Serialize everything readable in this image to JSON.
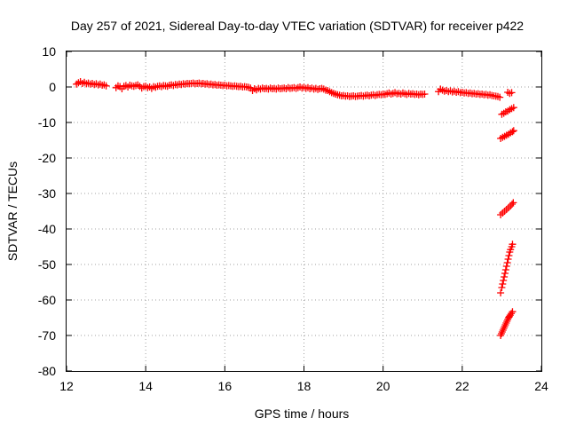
{
  "chart_data": {
    "type": "scatter",
    "title": "Day 257 of 2021, Sidereal Day-to-day VTEC variation (SDTVAR) for receiver p422",
    "xlabel": "GPS time / hours",
    "ylabel": "SDTVAR / TECUs",
    "xlim": [
      12,
      24
    ],
    "ylim": [
      -80,
      10
    ],
    "xticks": [
      "12",
      "14",
      "16",
      "18",
      "20",
      "22",
      "24"
    ],
    "yticks": [
      "10",
      "0",
      "-10",
      "-20",
      "-30",
      "-40",
      "-50",
      "-60",
      "-70",
      "-80"
    ],
    "grid": true,
    "marker": "plus",
    "series": [
      {
        "color": "#ff0000",
        "points": [
          [
            12.25,
            0.8
          ],
          [
            12.3,
            1.2
          ],
          [
            12.35,
            1.5
          ],
          [
            12.4,
            1.0
          ],
          [
            12.45,
            1.3
          ],
          [
            12.5,
            0.9
          ],
          [
            12.55,
            1.1
          ],
          [
            12.6,
            0.8
          ],
          [
            12.65,
            1.0
          ],
          [
            12.7,
            0.7
          ],
          [
            12.75,
            0.9
          ],
          [
            12.8,
            0.6
          ],
          [
            12.85,
            0.8
          ],
          [
            12.9,
            0.5
          ],
          [
            12.95,
            0.6
          ],
          [
            13.0,
            0.3
          ],
          [
            13.25,
            -0.2
          ],
          [
            13.3,
            0.3
          ],
          [
            13.35,
            0.1
          ],
          [
            13.4,
            -0.5
          ],
          [
            13.45,
            0.2
          ],
          [
            13.5,
            0.4
          ],
          [
            13.55,
            0.0
          ],
          [
            13.6,
            0.5
          ],
          [
            13.65,
            0.3
          ],
          [
            13.7,
            0.2
          ],
          [
            13.75,
            0.4
          ],
          [
            13.8,
            0.6
          ],
          [
            13.85,
            0.2
          ],
          [
            13.9,
            -0.3
          ],
          [
            13.95,
            0.1
          ],
          [
            14.0,
            0.2
          ],
          [
            14.05,
            -0.2
          ],
          [
            14.1,
            0.0
          ],
          [
            14.15,
            -0.4
          ],
          [
            14.2,
            0.1
          ],
          [
            14.25,
            -0.1
          ],
          [
            14.3,
            0.2
          ],
          [
            14.35,
            0.3
          ],
          [
            14.4,
            0.1
          ],
          [
            14.45,
            0.4
          ],
          [
            14.5,
            0.3
          ],
          [
            14.55,
            0.2
          ],
          [
            14.6,
            0.5
          ],
          [
            14.65,
            0.6
          ],
          [
            14.7,
            0.4
          ],
          [
            14.75,
            0.7
          ],
          [
            14.8,
            0.6
          ],
          [
            14.85,
            0.8
          ],
          [
            14.9,
            0.7
          ],
          [
            14.95,
            0.9
          ],
          [
            15.0,
            0.8
          ],
          [
            15.05,
            1.0
          ],
          [
            15.1,
            0.9
          ],
          [
            15.15,
            1.0
          ],
          [
            15.2,
            1.1
          ],
          [
            15.25,
            0.9
          ],
          [
            15.3,
            1.0
          ],
          [
            15.35,
            1.1
          ],
          [
            15.4,
            0.9
          ],
          [
            15.45,
            1.0
          ],
          [
            15.5,
            0.8
          ],
          [
            15.55,
            0.9
          ],
          [
            15.6,
            0.7
          ],
          [
            15.65,
            0.8
          ],
          [
            15.7,
            0.6
          ],
          [
            15.75,
            0.7
          ],
          [
            15.8,
            0.5
          ],
          [
            15.85,
            0.6
          ],
          [
            15.9,
            0.5
          ],
          [
            15.95,
            0.4
          ],
          [
            16.0,
            0.5
          ],
          [
            16.05,
            0.3
          ],
          [
            16.1,
            0.4
          ],
          [
            16.15,
            0.3
          ],
          [
            16.2,
            0.2
          ],
          [
            16.25,
            0.3
          ],
          [
            16.3,
            0.2
          ],
          [
            16.35,
            0.1
          ],
          [
            16.4,
            0.2
          ],
          [
            16.45,
            0.0
          ],
          [
            16.5,
            0.1
          ],
          [
            16.55,
            0.0
          ],
          [
            16.6,
            -0.1
          ],
          [
            16.65,
            -0.3
          ],
          [
            16.7,
            -1.0
          ],
          [
            16.75,
            -0.5
          ],
          [
            16.8,
            -0.8
          ],
          [
            16.85,
            -0.4
          ],
          [
            16.9,
            -0.6
          ],
          [
            16.95,
            -0.3
          ],
          [
            17.0,
            -0.5
          ],
          [
            17.05,
            -0.4
          ],
          [
            17.1,
            -0.6
          ],
          [
            17.15,
            -0.3
          ],
          [
            17.2,
            -0.5
          ],
          [
            17.25,
            -0.4
          ],
          [
            17.3,
            -0.6
          ],
          [
            17.35,
            -0.3
          ],
          [
            17.4,
            -0.5
          ],
          [
            17.45,
            -0.4
          ],
          [
            17.5,
            -0.3
          ],
          [
            17.55,
            -0.5
          ],
          [
            17.6,
            -0.2
          ],
          [
            17.65,
            -0.4
          ],
          [
            17.7,
            -0.3
          ],
          [
            17.75,
            -0.2
          ],
          [
            17.8,
            -0.4
          ],
          [
            17.85,
            -0.2
          ],
          [
            17.9,
            0.0
          ],
          [
            17.95,
            -0.3
          ],
          [
            18.0,
            -0.1
          ],
          [
            18.05,
            -0.4
          ],
          [
            18.1,
            -0.2
          ],
          [
            18.15,
            -0.5
          ],
          [
            18.2,
            -0.3
          ],
          [
            18.25,
            -0.6
          ],
          [
            18.3,
            -0.4
          ],
          [
            18.35,
            -0.7
          ],
          [
            18.4,
            -0.5
          ],
          [
            18.45,
            -0.4
          ],
          [
            18.5,
            -0.6
          ],
          [
            18.55,
            -0.9
          ],
          [
            18.6,
            -1.0
          ],
          [
            18.65,
            -1.3
          ],
          [
            18.7,
            -1.6
          ],
          [
            18.75,
            -1.8
          ],
          [
            18.8,
            -2.0
          ],
          [
            18.85,
            -2.2
          ],
          [
            18.9,
            -2.3
          ],
          [
            18.95,
            -2.5
          ],
          [
            19.0,
            -2.4
          ],
          [
            19.05,
            -2.6
          ],
          [
            19.1,
            -2.5
          ],
          [
            19.15,
            -2.7
          ],
          [
            19.2,
            -2.6
          ],
          [
            19.25,
            -2.5
          ],
          [
            19.3,
            -2.7
          ],
          [
            19.35,
            -2.6
          ],
          [
            19.4,
            -2.5
          ],
          [
            19.45,
            -2.4
          ],
          [
            19.5,
            -2.6
          ],
          [
            19.55,
            -2.4
          ],
          [
            19.6,
            -2.3
          ],
          [
            19.65,
            -2.5
          ],
          [
            19.7,
            -2.3
          ],
          [
            19.75,
            -2.2
          ],
          [
            19.8,
            -2.4
          ],
          [
            19.85,
            -2.2
          ],
          [
            19.9,
            -2.1
          ],
          [
            19.95,
            -2.2
          ],
          [
            20.0,
            -2.0
          ],
          [
            20.05,
            -2.1
          ],
          [
            20.1,
            -1.9
          ],
          [
            20.15,
            -1.7
          ],
          [
            20.2,
            -2.0
          ],
          [
            20.25,
            -1.8
          ],
          [
            20.3,
            -1.6
          ],
          [
            20.35,
            -1.9
          ],
          [
            20.4,
            -1.8
          ],
          [
            20.45,
            -2.0
          ],
          [
            20.5,
            -1.7
          ],
          [
            20.55,
            -1.9
          ],
          [
            20.6,
            -2.1
          ],
          [
            20.65,
            -1.8
          ],
          [
            20.7,
            -2.0
          ],
          [
            20.75,
            -1.9
          ],
          [
            20.8,
            -2.1
          ],
          [
            20.85,
            -2.0
          ],
          [
            20.9,
            -2.2
          ],
          [
            20.95,
            -2.0
          ],
          [
            21.0,
            -2.1
          ],
          [
            21.05,
            -2.0
          ],
          [
            21.4,
            -1.3
          ],
          [
            21.45,
            -0.6
          ],
          [
            21.5,
            -0.9
          ],
          [
            21.55,
            -1.2
          ],
          [
            21.6,
            -1.0
          ],
          [
            21.65,
            -1.3
          ],
          [
            21.7,
            -1.1
          ],
          [
            21.75,
            -1.4
          ],
          [
            21.8,
            -1.2
          ],
          [
            21.85,
            -1.5
          ],
          [
            21.9,
            -1.3
          ],
          [
            21.95,
            -1.6
          ],
          [
            22.0,
            -1.5
          ],
          [
            22.05,
            -1.7
          ],
          [
            22.1,
            -1.6
          ],
          [
            22.15,
            -1.8
          ],
          [
            22.2,
            -1.7
          ],
          [
            22.25,
            -1.9
          ],
          [
            22.3,
            -1.8
          ],
          [
            22.35,
            -2.0
          ],
          [
            22.4,
            -1.9
          ],
          [
            22.45,
            -2.1
          ],
          [
            22.5,
            -2.0
          ],
          [
            22.55,
            -2.2
          ],
          [
            22.6,
            -2.1
          ],
          [
            22.65,
            -2.3
          ],
          [
            22.7,
            -2.2
          ],
          [
            22.75,
            -2.4
          ],
          [
            22.8,
            -2.5
          ],
          [
            22.85,
            -2.6
          ],
          [
            22.9,
            -2.7
          ],
          [
            22.95,
            -2.9
          ],
          [
            23.15,
            -1.5
          ],
          [
            23.2,
            -1.8
          ],
          [
            23.25,
            -1.6
          ],
          [
            23.0,
            -7.7
          ],
          [
            23.05,
            -7.4
          ],
          [
            23.1,
            -7.0
          ],
          [
            23.15,
            -6.8
          ],
          [
            23.2,
            -6.4
          ],
          [
            23.25,
            -6.1
          ],
          [
            23.3,
            -5.8
          ],
          [
            22.97,
            -14.5
          ],
          [
            23.02,
            -14.2
          ],
          [
            23.07,
            -13.9
          ],
          [
            23.12,
            -13.6
          ],
          [
            23.17,
            -13.3
          ],
          [
            23.22,
            -12.9
          ],
          [
            23.27,
            -12.6
          ],
          [
            23.3,
            -12.3
          ],
          [
            22.97,
            -36.0
          ],
          [
            23.02,
            -35.5
          ],
          [
            23.07,
            -35.0
          ],
          [
            23.12,
            -34.5
          ],
          [
            23.17,
            -34.0
          ],
          [
            23.22,
            -33.5
          ],
          [
            23.26,
            -33.0
          ],
          [
            23.29,
            -32.6
          ],
          [
            22.97,
            -58.0
          ],
          [
            23.0,
            -56.5
          ],
          [
            23.02,
            -55.5
          ],
          [
            23.04,
            -54.5
          ],
          [
            23.06,
            -53.5
          ],
          [
            23.08,
            -52.5
          ],
          [
            23.1,
            -51.5
          ],
          [
            23.12,
            -50.5
          ],
          [
            23.14,
            -49.5
          ],
          [
            23.16,
            -48.5
          ],
          [
            23.18,
            -47.5
          ],
          [
            23.2,
            -46.5
          ],
          [
            23.22,
            -45.8
          ],
          [
            23.25,
            -45.0
          ],
          [
            23.27,
            -44.3
          ],
          [
            22.97,
            -70.0
          ],
          [
            22.99,
            -69.5
          ],
          [
            23.01,
            -69.0
          ],
          [
            23.03,
            -68.5
          ],
          [
            23.05,
            -68.0
          ],
          [
            23.07,
            -67.5
          ],
          [
            23.09,
            -67.0
          ],
          [
            23.11,
            -66.5
          ],
          [
            23.13,
            -66.0
          ],
          [
            23.15,
            -65.5
          ],
          [
            23.17,
            -65.0
          ],
          [
            23.19,
            -64.7
          ],
          [
            23.21,
            -64.3
          ],
          [
            23.24,
            -63.8
          ],
          [
            23.27,
            -63.3
          ]
        ]
      }
    ]
  }
}
